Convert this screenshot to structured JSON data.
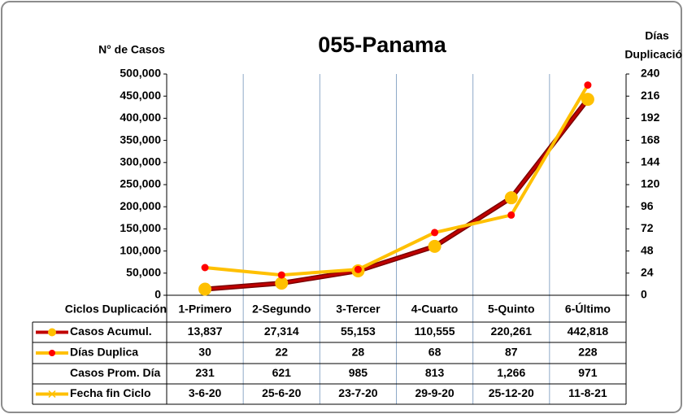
{
  "chart_data": {
    "type": "line",
    "title": "055-Panama",
    "y_label": "N° de Casos",
    "y2_label": [
      "Días",
      "Duplicación"
    ],
    "categories_title": "Ciclos Duplicación",
    "categories": [
      "1-Primero",
      "2-Segundo",
      "3-Tercer",
      "4-Cuarto",
      "5-Quinto",
      "6-Último"
    ],
    "series": [
      {
        "name": "Casos Acumul.",
        "color": "#C00000",
        "marker_color": "#FFC000",
        "values": [
          13837,
          27314,
          55153,
          110555,
          220261,
          442818
        ],
        "value_labels": [
          "13,837",
          "27,314",
          "55,153",
          "110,555",
          "220,261",
          "442,818"
        ]
      },
      {
        "name": "Días Duplica",
        "color": "#FFC000",
        "marker_color": "#FF0000",
        "axis": "y2",
        "values": [
          30,
          22,
          28,
          68,
          87,
          228
        ]
      }
    ],
    "table_rows": [
      {
        "name": "Casos Prom. Día",
        "values": [
          231,
          621,
          985,
          813,
          1266,
          971
        ],
        "value_labels": [
          "231",
          "621",
          "985",
          "813",
          "1,266",
          "971"
        ]
      },
      {
        "name": "Fecha fin Ciclo",
        "color": "#FFC000",
        "values": [
          "3-6-20",
          "25-6-20",
          "23-7-20",
          "29-9-20",
          "25-12-20",
          "11-8-21"
        ]
      }
    ],
    "ylim": [
      0,
      500000
    ],
    "yticks": [
      {
        "value": 0,
        "label": "0"
      },
      {
        "value": 50000,
        "label": "50,000"
      },
      {
        "value": 100000,
        "label": "100,000"
      },
      {
        "value": 150000,
        "label": "150,000"
      },
      {
        "value": 200000,
        "label": "200,000"
      },
      {
        "value": 250000,
        "label": "250,000"
      },
      {
        "value": 300000,
        "label": "300,000"
      },
      {
        "value": 350000,
        "label": "350,000"
      },
      {
        "value": 400000,
        "label": "400,000"
      },
      {
        "value": 450000,
        "label": "450,000"
      },
      {
        "value": 500000,
        "label": "500,000"
      }
    ],
    "y2lim": [
      0,
      240
    ],
    "y2ticks": [
      0,
      24,
      48,
      72,
      96,
      120,
      144,
      168,
      192,
      216,
      240
    ]
  }
}
